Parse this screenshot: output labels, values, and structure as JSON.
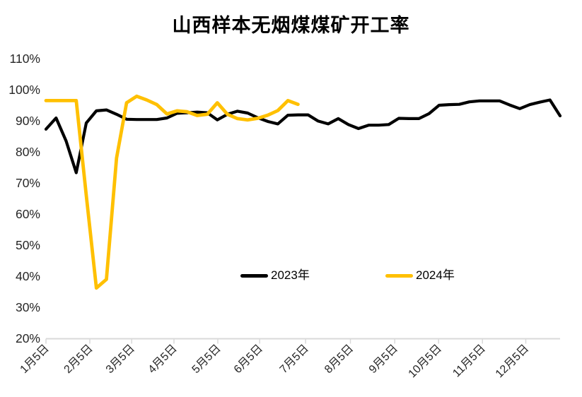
{
  "title": "山西样本无烟煤煤矿开工率",
  "colors": {
    "series_2023": "#000000",
    "series_2024": "#FFC000",
    "axis_line": "#D9D9D9",
    "axis_text": "#262626",
    "background": "#FFFFFF"
  },
  "legend": [
    {
      "label": "2023年",
      "color": "#000000"
    },
    {
      "label": "2024年",
      "color": "#FFC000"
    }
  ],
  "chart_data": {
    "type": "line",
    "title": "山西样本无烟煤煤矿开工率",
    "xlabel": "",
    "ylabel": "",
    "unit": "%",
    "ylim": [
      20,
      110
    ],
    "y_tick_step": 10,
    "y_tick_labels": [
      "110%",
      "100%",
      "90%",
      "80%",
      "70%",
      "60%",
      "50%",
      "40%",
      "30%",
      "20%"
    ],
    "grid": false,
    "legend_position": "inside-bottom-center",
    "x_axis_kind": "weekly-categories",
    "n_weeks": 52,
    "x_ticks": [
      {
        "label": "1月5日",
        "week": 0
      },
      {
        "label": "2月5日",
        "week": 4.35
      },
      {
        "label": "3月5日",
        "week": 8.5
      },
      {
        "label": "4月5日",
        "week": 12.7
      },
      {
        "label": "5月5日",
        "week": 17.05
      },
      {
        "label": "6月5日",
        "week": 21.2
      },
      {
        "label": "7月5日",
        "week": 25.75
      },
      {
        "label": "8月5日",
        "week": 30.2
      },
      {
        "label": "9月5日",
        "week": 34.6
      },
      {
        "label": "10月5日",
        "week": 38.95
      },
      {
        "label": "11月5日",
        "week": 43.3
      },
      {
        "label": "12月5日",
        "week": 47.6
      }
    ],
    "series": [
      {
        "name": "2023年",
        "color": "#000000",
        "values": [
          87.3,
          90.9,
          83.5,
          73.3,
          89.3,
          93.2,
          93.5,
          92.1,
          90.5,
          90.4,
          90.4,
          90.4,
          90.9,
          92.4,
          92.6,
          92.8,
          92.6,
          90.3,
          92.1,
          93.1,
          92.5,
          91.0,
          89.8,
          89.0,
          91.8,
          91.9,
          91.9,
          89.9,
          89.0,
          90.7,
          88.8,
          87.5,
          88.6,
          88.6,
          88.8,
          90.8,
          90.7,
          90.7,
          92.3,
          95.0,
          95.2,
          95.3,
          96.1,
          96.4,
          96.4,
          96.4,
          95.1,
          93.9,
          95.2,
          96.0,
          96.7,
          91.6
        ]
      },
      {
        "name": "2024年",
        "color": "#FFC000",
        "values": [
          96.5,
          96.5,
          96.5,
          96.5,
          66.0,
          36.2,
          39.0,
          78.0,
          95.8,
          97.9,
          96.7,
          95.2,
          92.2,
          93.2,
          92.9,
          91.7,
          92.1,
          95.8,
          92.1,
          90.7,
          90.3,
          90.8,
          91.8,
          93.3,
          96.5,
          95.3
        ]
      }
    ]
  }
}
